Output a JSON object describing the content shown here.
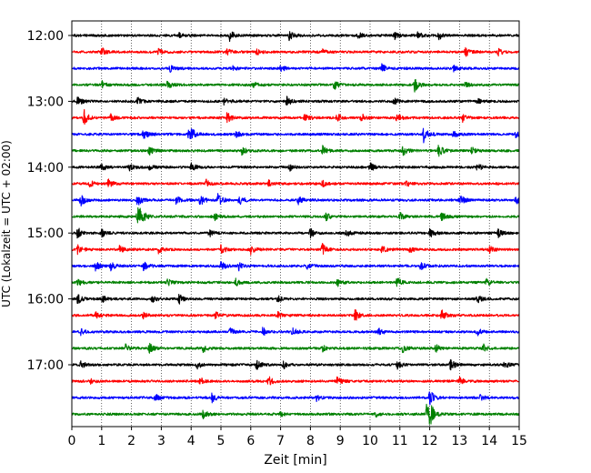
{
  "chart_data": {
    "type": "line",
    "subtype": "helicorder-seismogram",
    "title": "",
    "xlabel": "Zeit  [min]",
    "ylabel": "UTC (Lokalzeit = UTC + 02:00)",
    "xlim": [
      0,
      15
    ],
    "x_ticks": [
      0,
      1,
      2,
      3,
      4,
      5,
      6,
      7,
      8,
      9,
      10,
      11,
      12,
      13,
      14,
      15
    ],
    "x_tick_labels": [
      "0",
      "1",
      "2",
      "3",
      "4",
      "5",
      "6",
      "7",
      "8",
      "9",
      "10",
      "11",
      "12",
      "13",
      "14",
      "15"
    ],
    "grid": "vertical dotted",
    "trace_interval_minutes": 15,
    "trace_colors": [
      "#000000",
      "#ff0000",
      "#0000ff",
      "#008000"
    ],
    "y_tick_labels": [
      {
        "label": "12:00",
        "row": 0
      },
      {
        "label": "13:00",
        "row": 4
      },
      {
        "label": "14:00",
        "row": 8
      },
      {
        "label": "15:00",
        "row": 12
      },
      {
        "label": "16:00",
        "row": 16
      },
      {
        "label": "17:00",
        "row": 20
      }
    ],
    "rows": [
      {
        "start": "12:00",
        "events": [
          [
            5.3,
            1.0
          ],
          [
            7.3,
            1.0
          ],
          [
            10.8,
            0.8
          ],
          [
            12.3,
            0.8
          ],
          [
            11.6,
            0.6
          ],
          [
            9.6,
            0.5
          ],
          [
            3.6,
            0.4
          ]
        ]
      },
      {
        "start": "12:15",
        "events": [
          [
            1.0,
            0.7
          ],
          [
            2.9,
            0.5
          ],
          [
            5.2,
            0.6
          ],
          [
            6.2,
            0.5
          ],
          [
            13.2,
            0.8
          ],
          [
            14.3,
            0.6
          ],
          [
            8.4,
            0.4
          ]
        ]
      },
      {
        "start": "12:30",
        "events": [
          [
            3.3,
            0.5
          ],
          [
            7.0,
            0.6
          ],
          [
            10.4,
            0.7
          ],
          [
            12.8,
            0.5
          ],
          [
            5.4,
            0.4
          ]
        ]
      },
      {
        "start": "12:45",
        "events": [
          [
            1.0,
            0.6
          ],
          [
            3.2,
            0.7
          ],
          [
            8.8,
            0.8
          ],
          [
            11.5,
            1.1
          ],
          [
            13.2,
            0.5
          ],
          [
            6.1,
            0.5
          ]
        ]
      },
      {
        "start": "13:00",
        "events": [
          [
            0.2,
            0.8
          ],
          [
            2.2,
            0.6
          ],
          [
            5.1,
            0.7
          ],
          [
            7.2,
            0.8
          ],
          [
            10.8,
            0.6
          ],
          [
            13.6,
            0.5
          ]
        ]
      },
      {
        "start": "13:15",
        "events": [
          [
            0.4,
            1.4
          ],
          [
            1.3,
            0.6
          ],
          [
            5.2,
            1.0
          ],
          [
            7.8,
            1.0
          ],
          [
            8.9,
            0.7
          ],
          [
            9.7,
            0.8
          ],
          [
            10.9,
            0.8
          ],
          [
            13.1,
            0.6
          ]
        ]
      },
      {
        "start": "13:30",
        "events": [
          [
            2.4,
            0.9
          ],
          [
            3.9,
            0.7
          ],
          [
            4.0,
            0.9
          ],
          [
            5.5,
            0.6
          ],
          [
            11.8,
            1.4
          ],
          [
            12.8,
            0.6
          ],
          [
            14.9,
            0.7
          ]
        ]
      },
      {
        "start": "13:45",
        "events": [
          [
            2.6,
            0.7
          ],
          [
            5.7,
            0.6
          ],
          [
            8.4,
            0.8
          ],
          [
            11.1,
            0.8
          ],
          [
            12.3,
            1.0
          ],
          [
            13.4,
            0.6
          ]
        ]
      },
      {
        "start": "14:00",
        "events": [
          [
            1.0,
            0.6
          ],
          [
            1.9,
            0.7
          ],
          [
            2.6,
            0.5
          ],
          [
            4.0,
            0.7
          ],
          [
            7.3,
            0.6
          ],
          [
            10.0,
            0.8
          ],
          [
            13.6,
            0.6
          ]
        ]
      },
      {
        "start": "14:15",
        "events": [
          [
            0.6,
            0.5
          ],
          [
            1.2,
            0.9
          ],
          [
            4.5,
            0.6
          ],
          [
            6.6,
            0.6
          ],
          [
            8.4,
            0.5
          ],
          [
            11.2,
            0.5
          ]
        ]
      },
      {
        "start": "14:30",
        "events": [
          [
            0.3,
            1.0
          ],
          [
            2.2,
            1.2
          ],
          [
            3.5,
            0.8
          ],
          [
            4.3,
            0.9
          ],
          [
            4.9,
            1.2
          ],
          [
            5.6,
            1.0
          ],
          [
            7.6,
            0.7
          ],
          [
            13.0,
            1.0
          ],
          [
            14.9,
            0.8
          ]
        ]
      },
      {
        "start": "14:45",
        "events": [
          [
            2.2,
            1.6
          ],
          [
            2.3,
            1.2
          ],
          [
            4.8,
            0.6
          ],
          [
            8.5,
            0.7
          ],
          [
            11.0,
            0.6
          ],
          [
            12.4,
            0.7
          ]
        ]
      },
      {
        "start": "15:00",
        "events": [
          [
            0.2,
            1.0
          ],
          [
            1.0,
            0.6
          ],
          [
            4.6,
            0.6
          ],
          [
            8.0,
            0.8
          ],
          [
            9.2,
            0.6
          ],
          [
            12.0,
            0.8
          ],
          [
            14.3,
            0.6
          ]
        ]
      },
      {
        "start": "15:15",
        "events": [
          [
            0.2,
            0.8
          ],
          [
            1.6,
            0.6
          ],
          [
            2.9,
            0.6
          ],
          [
            5.0,
            0.7
          ],
          [
            6.0,
            0.8
          ],
          [
            8.4,
            0.9
          ],
          [
            10.4,
            0.6
          ],
          [
            11.3,
            0.6
          ],
          [
            14.0,
            0.6
          ]
        ]
      },
      {
        "start": "15:30",
        "events": [
          [
            0.8,
            0.8
          ],
          [
            1.3,
            0.7
          ],
          [
            2.4,
            0.8
          ],
          [
            5.0,
            1.0
          ],
          [
            5.6,
            0.7
          ],
          [
            7.9,
            0.6
          ],
          [
            11.7,
            0.7
          ]
        ]
      },
      {
        "start": "15:45",
        "events": [
          [
            0.2,
            0.6
          ],
          [
            3.2,
            0.6
          ],
          [
            5.5,
            0.6
          ],
          [
            8.9,
            0.7
          ],
          [
            10.9,
            0.8
          ],
          [
            13.9,
            0.6
          ]
        ]
      },
      {
        "start": "16:00",
        "events": [
          [
            0.2,
            0.8
          ],
          [
            1.0,
            0.7
          ],
          [
            2.7,
            0.6
          ],
          [
            3.6,
            0.9
          ],
          [
            6.9,
            0.5
          ],
          [
            13.6,
            0.7
          ]
        ]
      },
      {
        "start": "16:15",
        "events": [
          [
            0.8,
            0.5
          ],
          [
            2.4,
            0.5
          ],
          [
            4.8,
            0.6
          ],
          [
            6.9,
            0.6
          ],
          [
            9.5,
            1.0
          ],
          [
            12.4,
            0.9
          ]
        ]
      },
      {
        "start": "16:30",
        "events": [
          [
            0.3,
            0.5
          ],
          [
            5.3,
            0.6
          ],
          [
            6.4,
            0.7
          ],
          [
            7.4,
            0.6
          ],
          [
            10.3,
            0.5
          ],
          [
            13.6,
            0.6
          ]
        ]
      },
      {
        "start": "16:45",
        "events": [
          [
            1.8,
            0.6
          ],
          [
            2.6,
            0.8
          ],
          [
            4.4,
            0.6
          ],
          [
            8.4,
            0.5
          ],
          [
            11.1,
            0.7
          ],
          [
            12.2,
            0.7
          ],
          [
            13.8,
            0.6
          ]
        ]
      },
      {
        "start": "17:00",
        "events": [
          [
            0.3,
            0.6
          ],
          [
            4.2,
            0.7
          ],
          [
            6.2,
            0.9
          ],
          [
            7.1,
            0.6
          ],
          [
            10.9,
            0.7
          ],
          [
            12.7,
            0.9
          ],
          [
            14.5,
            0.6
          ]
        ]
      },
      {
        "start": "17:15",
        "events": [
          [
            0.6,
            0.5
          ],
          [
            4.3,
            0.6
          ],
          [
            6.6,
            0.8
          ],
          [
            8.9,
            0.7
          ],
          [
            13.0,
            0.6
          ]
        ]
      },
      {
        "start": "17:30",
        "events": [
          [
            2.8,
            0.6
          ],
          [
            4.7,
            0.7
          ],
          [
            8.2,
            0.5
          ],
          [
            12.0,
            1.3
          ],
          [
            13.7,
            0.5
          ]
        ]
      },
      {
        "start": "17:45",
        "events": [
          [
            4.4,
            0.6
          ],
          [
            7.0,
            0.4
          ],
          [
            11.9,
            2.2
          ],
          [
            12.0,
            1.6
          ],
          [
            10.2,
            0.4
          ]
        ]
      }
    ]
  }
}
